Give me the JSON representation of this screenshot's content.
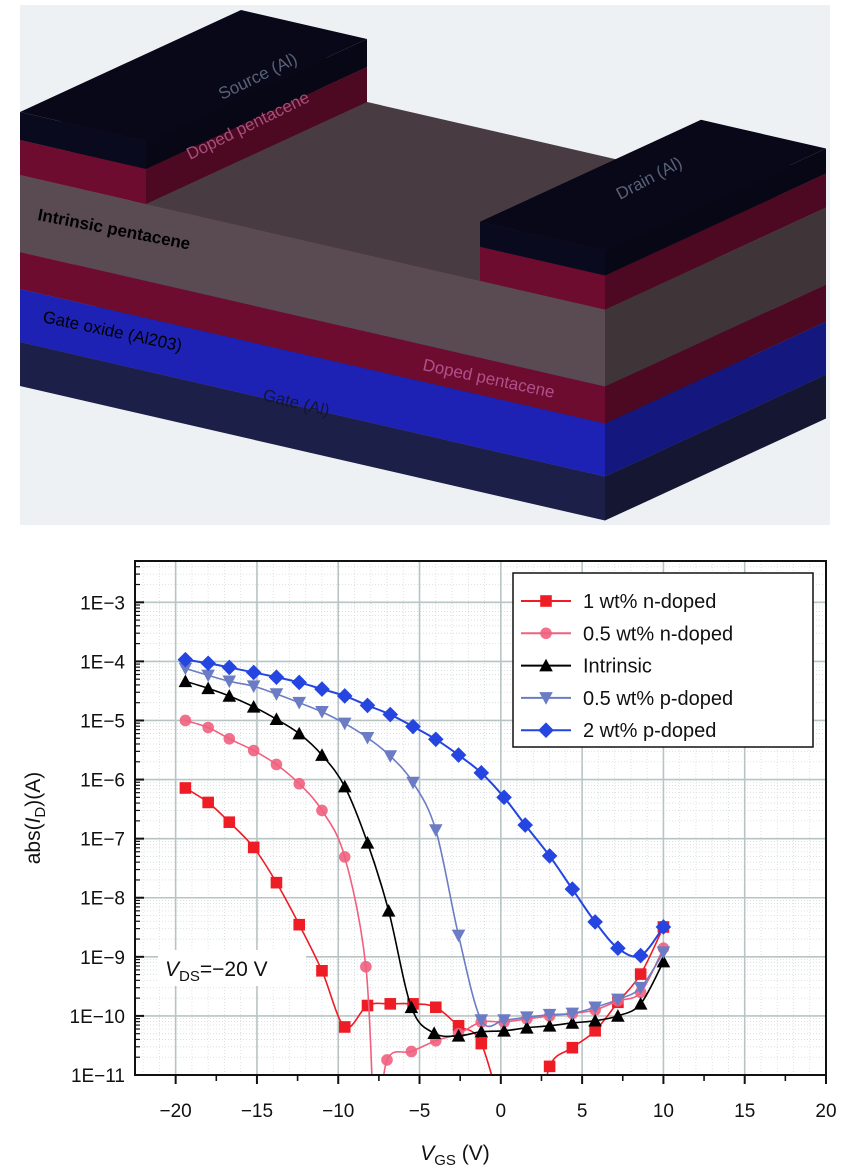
{
  "diagram": {
    "labels": {
      "source": "Source (Al)",
      "doped_top": "Doped pentacene",
      "drain": "Drain (Al)",
      "intrinsic": "Intrinsic pentacene",
      "gate_oxide": "Gate oxide (Al203)",
      "doped_bottom": "Doped pentacene",
      "gate": "Gate (Al)"
    },
    "colors": {
      "background": "#edf1f4",
      "metal": "#0a0a1e",
      "doped": "#6e0c30",
      "intrinsic": "#5a4b52",
      "oxide": "#1d22b4",
      "gate": "#1c1f48"
    }
  },
  "chart_data": {
    "type": "line",
    "title": "",
    "xlabel": {
      "var": "V",
      "sub": "GS",
      "suffix": " (V)"
    },
    "ylabel": {
      "prefix": "abs(",
      "var": "I",
      "sub": "D",
      "suffix": ")(A)"
    },
    "xscale": "linear",
    "yscale": "log",
    "xlim": [
      -22.5,
      20
    ],
    "ylim": [
      1e-11,
      0.005
    ],
    "grid": true,
    "legend_position": "top-right",
    "xticks": [
      {
        "value": -20,
        "label": "−20"
      },
      {
        "value": -15,
        "label": "−15"
      },
      {
        "value": -10,
        "label": "−10"
      },
      {
        "value": -5,
        "label": "−5"
      },
      {
        "value": 0,
        "label": "0"
      },
      {
        "value": 5,
        "label": "5"
      },
      {
        "value": 10,
        "label": "10"
      },
      {
        "value": 15,
        "label": "15"
      },
      {
        "value": 20,
        "label": "20"
      }
    ],
    "yticks": [
      {
        "value": 0.001,
        "label": "1E−3"
      },
      {
        "value": 0.0001,
        "label": "1E−4"
      },
      {
        "value": 1e-05,
        "label": "1E−5"
      },
      {
        "value": 1e-06,
        "label": "1E−6"
      },
      {
        "value": 1e-07,
        "label": "1E−7"
      },
      {
        "value": 1e-08,
        "label": "1E−8"
      },
      {
        "value": 1e-09,
        "label": "1E−9"
      },
      {
        "value": 1e-10,
        "label": "1E−10"
      },
      {
        "value": 1e-11,
        "label": "1E−11"
      }
    ],
    "annotation": {
      "var": "V",
      "sub": "DS",
      "suffix": "=−20 V"
    },
    "series": [
      {
        "name": "1 wt% n-doped",
        "color": "#ee1c25",
        "marker": "square",
        "points": [
          [
            -19.4,
            7.2e-07
          ],
          [
            -18.0,
            4.1e-07
          ],
          [
            -16.7,
            1.9e-07
          ],
          [
            -15.2,
            7.1e-08
          ],
          [
            -13.8,
            1.8e-08
          ],
          [
            -12.4,
            3.5e-09
          ],
          [
            -11.0,
            5.8e-10
          ],
          [
            -9.6,
            6.5e-11
          ],
          [
            -8.2,
            1.5e-10
          ],
          [
            -6.8,
            1.6e-10
          ],
          [
            -5.4,
            1.6e-10
          ],
          [
            -4.0,
            1.4e-10
          ],
          [
            -2.6,
            6.8e-11
          ],
          [
            -1.2,
            3.4e-11
          ],
          [
            0.6,
            1e-12
          ],
          [
            2.2,
            1e-12
          ],
          [
            3.0,
            1.4e-11
          ],
          [
            4.4,
            2.9e-11
          ],
          [
            5.8,
            5.6e-11
          ],
          [
            7.2,
            1.7e-10
          ],
          [
            8.6,
            5.1e-10
          ],
          [
            10.0,
            3.2e-09
          ]
        ]
      },
      {
        "name": "0.5 wt% n-doped",
        "color": "#f0607e",
        "marker": "circle",
        "points": [
          [
            -19.4,
            1e-05
          ],
          [
            -18.0,
            7.6e-06
          ],
          [
            -16.7,
            4.9e-06
          ],
          [
            -15.2,
            3.1e-06
          ],
          [
            -13.8,
            1.8e-06
          ],
          [
            -12.4,
            8.5e-07
          ],
          [
            -11.0,
            3e-07
          ],
          [
            -9.6,
            4.9e-08
          ],
          [
            -8.3,
            6.8e-10
          ],
          [
            -7.7,
            1e-12
          ],
          [
            -7.0,
            1.8e-11
          ],
          [
            -5.5,
            2.5e-11
          ],
          [
            -4.0,
            3.8e-11
          ],
          [
            -2.6,
            5e-11
          ],
          [
            -1.2,
            7.9e-11
          ],
          [
            0.2,
            7.9e-11
          ],
          [
            1.6,
            8.9e-11
          ],
          [
            3.0,
            1e-10
          ],
          [
            4.4,
            1.1e-10
          ],
          [
            5.8,
            1.26e-10
          ],
          [
            7.2,
            1.8e-10
          ],
          [
            8.6,
            2.5e-10
          ],
          [
            10.0,
            1.4e-09
          ]
        ]
      },
      {
        "name": "Intrinsic",
        "color": "#000000",
        "marker": "triangle-up",
        "points": [
          [
            -19.4,
            4.6e-05
          ],
          [
            -18.0,
            3.5e-05
          ],
          [
            -16.7,
            2.6e-05
          ],
          [
            -15.2,
            1.7e-05
          ],
          [
            -13.8,
            1.05e-05
          ],
          [
            -12.4,
            6e-06
          ],
          [
            -11.0,
            2.6e-06
          ],
          [
            -9.6,
            7.6e-07
          ],
          [
            -8.2,
            8.5e-08
          ],
          [
            -6.9,
            6e-09
          ],
          [
            -5.5,
            1.4e-10
          ],
          [
            -4.1,
            5.1e-11
          ],
          [
            -2.6,
            4.6e-11
          ],
          [
            -1.2,
            5.4e-11
          ],
          [
            0.2,
            5.6e-11
          ],
          [
            1.6,
            6.3e-11
          ],
          [
            3.0,
            6.8e-11
          ],
          [
            4.4,
            7.6e-11
          ],
          [
            5.8,
            8.3e-11
          ],
          [
            7.2,
            1e-10
          ],
          [
            8.6,
            1.6e-10
          ],
          [
            10.0,
            8.3e-10
          ]
        ]
      },
      {
        "name": "0.5 wt% p-doped",
        "color": "#6b7cc4",
        "marker": "triangle-down",
        "points": [
          [
            -19.4,
            7.6e-05
          ],
          [
            -18.0,
            5.8e-05
          ],
          [
            -16.7,
            4.6e-05
          ],
          [
            -15.2,
            3.8e-05
          ],
          [
            -13.8,
            2.8e-05
          ],
          [
            -12.4,
            2e-05
          ],
          [
            -11.0,
            1.4e-05
          ],
          [
            -9.6,
            8.9e-06
          ],
          [
            -8.2,
            5.1e-06
          ],
          [
            -6.8,
            2.5e-06
          ],
          [
            -5.4,
            8.9e-07
          ],
          [
            -4.0,
            1.4e-07
          ],
          [
            -2.6,
            2.3e-09
          ],
          [
            -1.2,
            8.5e-11
          ],
          [
            0.2,
            8.5e-11
          ],
          [
            1.6,
            9.5e-11
          ],
          [
            3.0,
            1.05e-10
          ],
          [
            4.4,
            1.1e-10
          ],
          [
            5.8,
            1.4e-10
          ],
          [
            7.2,
            1.9e-10
          ],
          [
            8.6,
            3e-10
          ],
          [
            10.0,
            1.2e-09
          ]
        ]
      },
      {
        "name": "2 wt% p-doped",
        "color": "#2545e0",
        "marker": "diamond",
        "points": [
          [
            -19.4,
            0.000107
          ],
          [
            -18.0,
            9.3e-05
          ],
          [
            -16.7,
            7.9e-05
          ],
          [
            -15.2,
            6.5e-05
          ],
          [
            -13.8,
            5.4e-05
          ],
          [
            -12.4,
            4.4e-05
          ],
          [
            -11.0,
            3.4e-05
          ],
          [
            -9.6,
            2.6e-05
          ],
          [
            -8.2,
            1.8e-05
          ],
          [
            -6.8,
            1.26e-05
          ],
          [
            -5.4,
            7.9e-06
          ],
          [
            -4.0,
            4.8e-06
          ],
          [
            -2.6,
            2.6e-06
          ],
          [
            -1.2,
            1.3e-06
          ],
          [
            0.2,
            5e-07
          ],
          [
            1.5,
            1.7e-07
          ],
          [
            3.0,
            5.1e-08
          ],
          [
            4.4,
            1.4e-08
          ],
          [
            5.8,
            3.9e-09
          ],
          [
            7.2,
            1.4e-09
          ],
          [
            8.6,
            1.05e-09
          ],
          [
            10.0,
            3.2e-09
          ]
        ]
      }
    ]
  }
}
